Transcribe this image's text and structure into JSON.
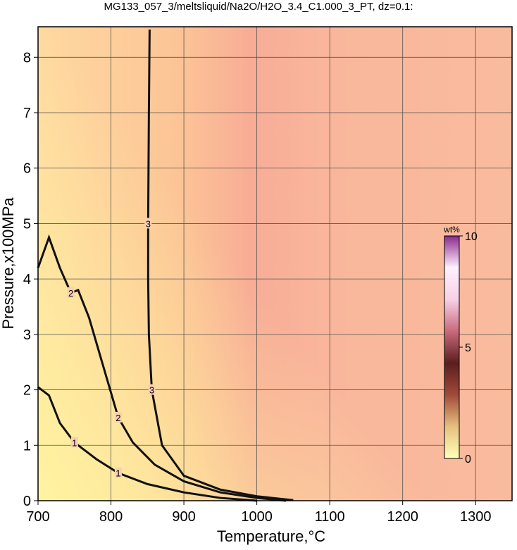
{
  "chart_data": {
    "type": "contour",
    "title": "MG133_057_3/meltsliquid/Na2O/H2O_3.4_C1.000_3_PT, dz=0.1:",
    "x_label": "Temperature,°C",
    "y_label": "Pressure,x100MPa",
    "xlim": [
      700,
      1350
    ],
    "ylim": [
      0,
      8.55
    ],
    "xticks": [
      700,
      800,
      900,
      1000,
      1100,
      1200,
      1300
    ],
    "yticks": [
      0,
      1,
      2,
      3,
      4,
      5,
      6,
      7,
      8
    ],
    "grid": true,
    "line_color": "#111111",
    "contours": [
      {
        "level": 1,
        "x": [
          700,
          715,
          730,
          750,
          780,
          810,
          850,
          900,
          950,
          1000
        ],
        "y": [
          2.05,
          1.9,
          1.4,
          1.05,
          0.75,
          0.5,
          0.3,
          0.15,
          0.05,
          0
        ]
      },
      {
        "level": 2,
        "x": [
          700,
          715,
          730,
          745,
          755,
          770,
          790,
          810,
          830,
          860,
          900,
          950,
          1000,
          1040
        ],
        "y": [
          4.2,
          4.75,
          4.2,
          3.75,
          3.8,
          3.3,
          2.4,
          1.5,
          1.05,
          0.65,
          0.35,
          0.15,
          0.05,
          0
        ]
      },
      {
        "level": 3,
        "x": [
          853,
          852,
          851,
          851,
          852,
          856,
          870,
          900,
          950,
          1000,
          1050
        ],
        "y": [
          8.5,
          7,
          5,
          4,
          3,
          2,
          1,
          0.45,
          0.2,
          0.08,
          0.01
        ]
      }
    ],
    "colorbar": {
      "label": "wt%",
      "lim": [
        0,
        10
      ],
      "ticks": [
        0,
        5,
        10
      ],
      "colors": [
        "#ffffb8",
        "#e6c080",
        "#a04a3a",
        "#5a1e1e",
        "#c86a7a",
        "#f7d0e6",
        "#fff0ff",
        "#8a2a8a"
      ]
    }
  }
}
